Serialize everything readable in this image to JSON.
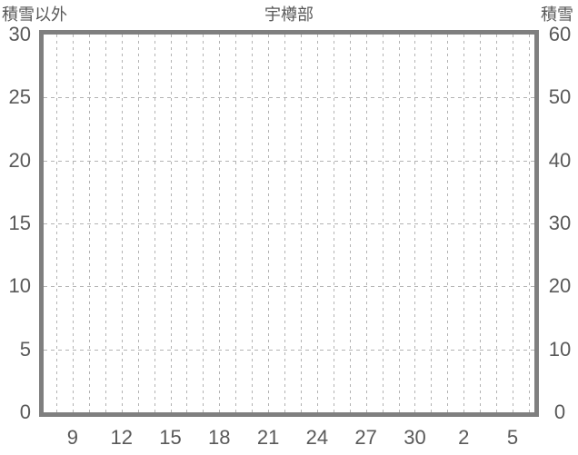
{
  "chart_data": {
    "type": "line",
    "title": "宇樽部",
    "left_axis": {
      "label": "積雪以外",
      "range": [
        0,
        30
      ],
      "ticks": [
        30,
        25,
        20,
        15,
        10,
        5,
        0
      ]
    },
    "right_axis": {
      "label": "積雪",
      "range": [
        0,
        60
      ],
      "ticks": [
        60,
        50,
        40,
        30,
        20,
        10,
        0
      ]
    },
    "x_axis": {
      "tick_labels": [
        "9",
        "12",
        "15",
        "18",
        "21",
        "24",
        "27",
        "30",
        "2",
        "5"
      ],
      "gridline_count": 30,
      "first_labeled_gridline_index": 1,
      "labeled_gridline_step": 3
    },
    "series": [],
    "grid": "dashed-both-directions",
    "legend": "none"
  },
  "colors": {
    "background": "#ffffff",
    "frame": "#7f7f7f",
    "gridline": "#b3b3b3",
    "text": "#595959"
  }
}
